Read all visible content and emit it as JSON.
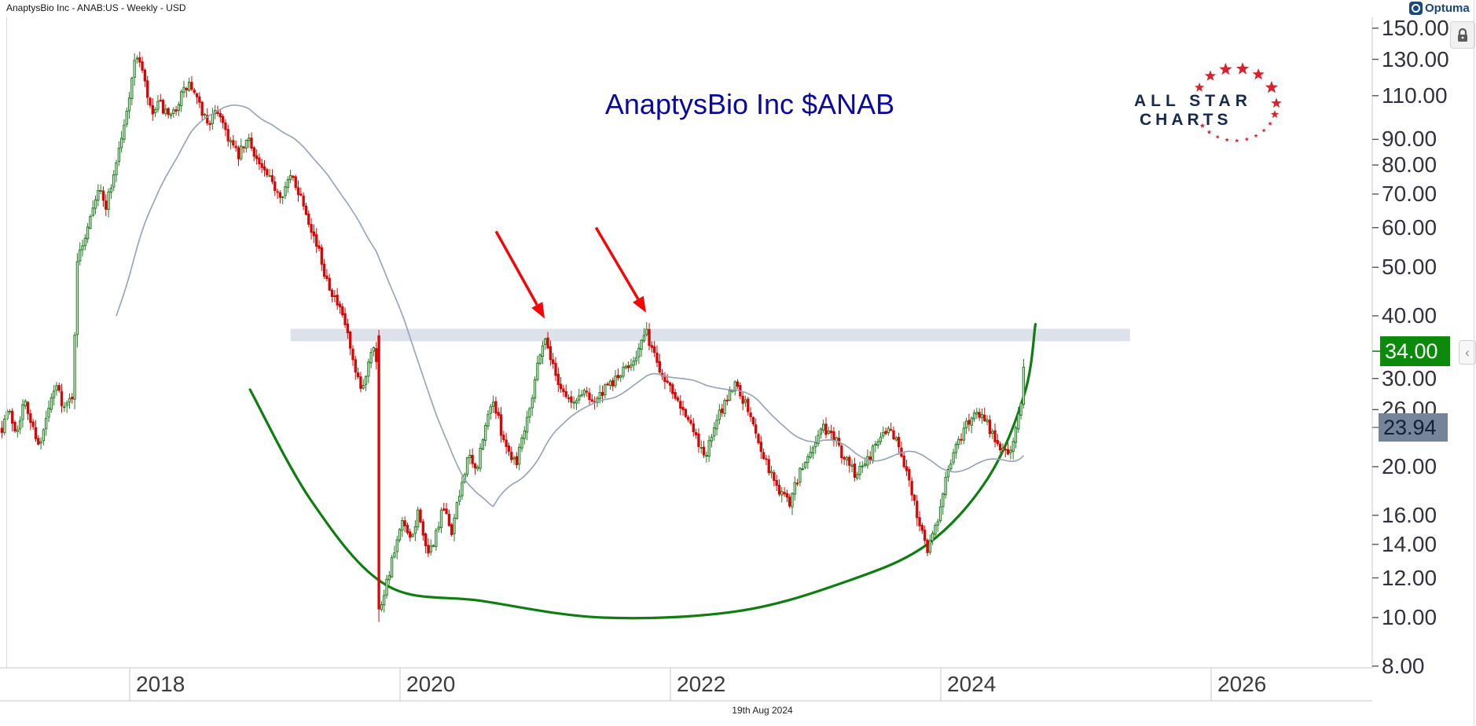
{
  "window": {
    "instrument_header": "AnaptysBio Inc - ANAB:US - Weekly - USD",
    "brand": "Optuma"
  },
  "chart_title": "AnaptysBio Inc $ANAB",
  "watermark": {
    "line1": "ALL STAR",
    "line2": "CHARTS"
  },
  "footer": {
    "date_label": "19th Aug 2024"
  },
  "controls": {
    "collapse_chevron": "‹",
    "lock_icon": "padlock"
  },
  "price_axis": {
    "tick_labels": [
      "150.00",
      "130.00",
      "110.00",
      "90.00",
      "80.00",
      "70.00",
      "60.00",
      "50.00",
      "40.00",
      "30.00",
      "26.00",
      "20.00",
      "16.00",
      "14.00",
      "12.00",
      "10.00",
      "8.00"
    ],
    "tick_prices": [
      150,
      130,
      110,
      90,
      80,
      70,
      60,
      50,
      40,
      30,
      26,
      20,
      16,
      14,
      12,
      10,
      8
    ],
    "last_price_badge": "34.00",
    "indicator_badge": "23.94"
  },
  "time_axis": {
    "tick_labels": [
      "2018",
      "2020",
      "2022",
      "2024",
      "2026"
    ],
    "tick_years": [
      2018,
      2020,
      2022,
      2024,
      2026
    ]
  },
  "colors": {
    "up_stroke": "#1e7d1e",
    "up_fill": "#d9ecd9",
    "down": "#d90404",
    "ma_line": "#9aa5b8",
    "zone_fill": "#dde1e9",
    "arc": "#0f7d10",
    "arrow": "#f40606",
    "axis_line": "#c9c9c9",
    "star_red": "#d8232a"
  },
  "chart_data": {
    "type": "candlestick",
    "title": "AnaptysBio Inc $ANAB",
    "symbol": "ANAB:US",
    "interval": "Weekly",
    "currency": "USD",
    "y_scale": "log",
    "x_axis_years": [
      2018,
      2020,
      2022,
      2024,
      2026
    ],
    "x_range_years": [
      2017.05,
      2027.2
    ],
    "y_axis_ticks": [
      150,
      130,
      110,
      90,
      80,
      70,
      60,
      50,
      40,
      30,
      26,
      20,
      16,
      14,
      12,
      10,
      8
    ],
    "last_close": 34.0,
    "last_bar_date": "19th Aug 2024",
    "moving_average": {
      "period_weeks": 45,
      "last_value": 23.94
    },
    "resistance_zone": {
      "price_low": 35.6,
      "price_high": 37.7,
      "start_year": 2019.19,
      "end_year": 2025.4
    },
    "arrows": [
      {
        "tail": [
          2020.71,
          59.0
        ],
        "tip": [
          2021.07,
          39.5
        ]
      },
      {
        "tail": [
          2021.45,
          60.0
        ],
        "tip": [
          2021.82,
          40.6
        ]
      }
    ],
    "rounded_bottom_arc": [
      [
        2018.89,
        28.5
      ],
      [
        2019.35,
        17.0
      ],
      [
        2019.9,
        11.6
      ],
      [
        2020.6,
        10.8
      ],
      [
        2021.5,
        10.0
      ],
      [
        2022.5,
        10.3
      ],
      [
        2023.3,
        11.8
      ],
      [
        2023.9,
        14.0
      ],
      [
        2024.35,
        19.0
      ],
      [
        2024.62,
        28.0
      ],
      [
        2024.7,
        38.5
      ]
    ],
    "weekly_close_anchors": [
      [
        2017.055,
        24
      ],
      [
        2017.1,
        26
      ],
      [
        2017.16,
        23.5
      ],
      [
        2017.22,
        27
      ],
      [
        2017.28,
        24
      ],
      [
        2017.34,
        22
      ],
      [
        2017.4,
        26
      ],
      [
        2017.46,
        29
      ],
      [
        2017.52,
        26
      ],
      [
        2017.58,
        28
      ],
      [
        2017.615,
        52
      ],
      [
        2017.67,
        58
      ],
      [
        2017.72,
        66
      ],
      [
        2017.77,
        72
      ],
      [
        2017.82,
        66
      ],
      [
        2017.87,
        74
      ],
      [
        2017.92,
        86
      ],
      [
        2017.97,
        98
      ],
      [
        2018.02,
        122
      ],
      [
        2018.06,
        134
      ],
      [
        2018.1,
        120
      ],
      [
        2018.16,
        100
      ],
      [
        2018.22,
        106
      ],
      [
        2018.3,
        98
      ],
      [
        2018.38,
        110
      ],
      [
        2018.44,
        116
      ],
      [
        2018.52,
        104
      ],
      [
        2018.58,
        97
      ],
      [
        2018.66,
        103
      ],
      [
        2018.72,
        92
      ],
      [
        2018.8,
        83
      ],
      [
        2018.88,
        90
      ],
      [
        2018.96,
        80
      ],
      [
        2019.04,
        74
      ],
      [
        2019.12,
        70
      ],
      [
        2019.2,
        76
      ],
      [
        2019.28,
        68
      ],
      [
        2019.36,
        58
      ],
      [
        2019.44,
        49
      ],
      [
        2019.52,
        43
      ],
      [
        2019.6,
        38
      ],
      [
        2019.66,
        31
      ],
      [
        2019.72,
        28
      ],
      [
        2019.78,
        34
      ],
      [
        2019.82,
        36
      ],
      [
        2019.85,
        10.4
      ],
      [
        2019.9,
        11.8
      ],
      [
        2019.96,
        13.5
      ],
      [
        2020.02,
        15.5
      ],
      [
        2020.08,
        14
      ],
      [
        2020.14,
        16.5
      ],
      [
        2020.2,
        13
      ],
      [
        2020.26,
        14.5
      ],
      [
        2020.32,
        16.5
      ],
      [
        2020.38,
        14.8
      ],
      [
        2020.44,
        17.5
      ],
      [
        2020.5,
        21
      ],
      [
        2020.56,
        19.5
      ],
      [
        2020.62,
        23
      ],
      [
        2020.68,
        27.5
      ],
      [
        2020.74,
        24
      ],
      [
        2020.8,
        21.5
      ],
      [
        2020.86,
        20.5
      ],
      [
        2020.92,
        24
      ],
      [
        2020.98,
        28
      ],
      [
        2021.04,
        34.5
      ],
      [
        2021.08,
        36
      ],
      [
        2021.14,
        31
      ],
      [
        2021.2,
        28.5
      ],
      [
        2021.28,
        26.5
      ],
      [
        2021.36,
        28.5
      ],
      [
        2021.44,
        27
      ],
      [
        2021.52,
        28.5
      ],
      [
        2021.6,
        30
      ],
      [
        2021.68,
        31.5
      ],
      [
        2021.76,
        34
      ],
      [
        2021.82,
        37
      ],
      [
        2021.88,
        33.5
      ],
      [
        2021.94,
        30.5
      ],
      [
        2022.02,
        28.5
      ],
      [
        2022.1,
        26
      ],
      [
        2022.18,
        23
      ],
      [
        2022.26,
        21
      ],
      [
        2022.34,
        24.5
      ],
      [
        2022.42,
        27.5
      ],
      [
        2022.48,
        29.5
      ],
      [
        2022.56,
        26.5
      ],
      [
        2022.64,
        23
      ],
      [
        2022.72,
        20
      ],
      [
        2022.8,
        18
      ],
      [
        2022.88,
        17
      ],
      [
        2022.96,
        19.5
      ],
      [
        2023.04,
        21.5
      ],
      [
        2023.12,
        24
      ],
      [
        2023.2,
        23
      ],
      [
        2023.28,
        21
      ],
      [
        2023.36,
        19.5
      ],
      [
        2023.44,
        20.5
      ],
      [
        2023.52,
        22
      ],
      [
        2023.6,
        24
      ],
      [
        2023.68,
        22.5
      ],
      [
        2023.76,
        19
      ],
      [
        2023.84,
        15.5
      ],
      [
        2023.9,
        13.8
      ],
      [
        2023.96,
        15
      ],
      [
        2024.02,
        18
      ],
      [
        2024.1,
        21.5
      ],
      [
        2024.18,
        24
      ],
      [
        2024.26,
        26
      ],
      [
        2024.34,
        24.5
      ],
      [
        2024.42,
        22
      ],
      [
        2024.5,
        21
      ],
      [
        2024.56,
        24
      ],
      [
        2024.6,
        28
      ],
      [
        2024.625,
        34
      ]
    ],
    "forced_bars": [
      {
        "year": 2019.846,
        "o": 36.5,
        "h": 37.5,
        "l": 9.8,
        "c": 10.4
      },
      {
        "year": 2024.625,
        "o": 30.0,
        "h": 42.0,
        "l": 29.5,
        "c": 34.0
      }
    ]
  }
}
